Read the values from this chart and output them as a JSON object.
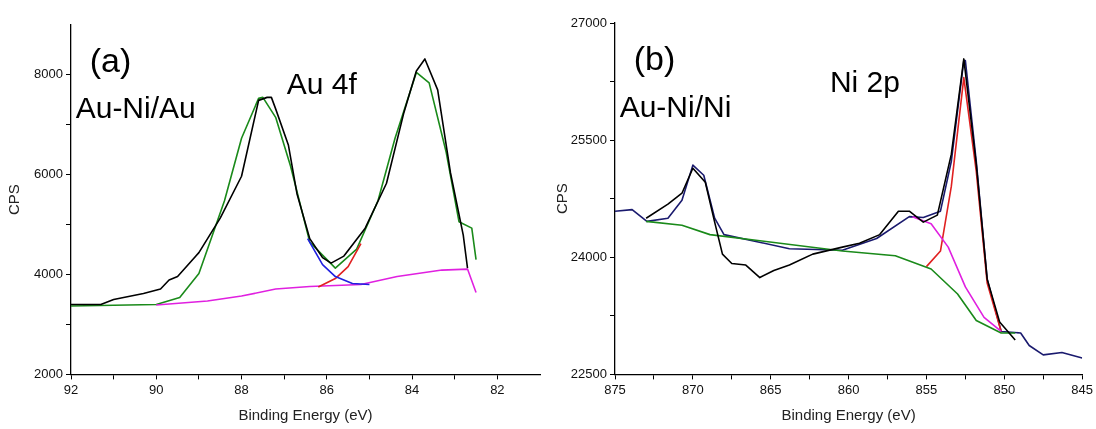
{
  "chart_data": [
    {
      "type": "line",
      "xlabel": "Binding Energy (eV)",
      "ylabel": "CPS",
      "annotations": [
        "(a)",
        "Au-Ni/Au",
        "Au 4f"
      ],
      "xlim": [
        92,
        81
      ],
      "ylim": [
        2000,
        9000
      ],
      "xticks": [
        92,
        {
          "value": 91,
          "label": null
        },
        90,
        {
          "value": 89,
          "label": null
        },
        88,
        {
          "value": 87,
          "label": null
        },
        86,
        {
          "value": 85,
          "label": null
        },
        84,
        {
          "value": 83,
          "label": null
        },
        82
      ],
      "yticks": [
        2000,
        {
          "value": 3000,
          "label": null
        },
        4000,
        {
          "value": 5000,
          "label": null
        },
        6000,
        {
          "value": 7000,
          "label": null
        },
        8000
      ],
      "series": [
        {
          "color": "#000000",
          "x": [
            92,
            91.3,
            91.0,
            90.3,
            89.9,
            89.7,
            89.5,
            89.0,
            88.5,
            88.0,
            87.6,
            87.4,
            87.3,
            87.2,
            86.9,
            86.7,
            86.4,
            86.1,
            85.9,
            85.6,
            85.1,
            84.6,
            84.2,
            83.9,
            83.7,
            83.4,
            83.1,
            82.8,
            82.7
          ],
          "values": [
            3400,
            3400,
            3500,
            3620,
            3710,
            3890,
            3960,
            4440,
            5130,
            5970,
            7490,
            7550,
            7550,
            7320,
            6590,
            5620,
            4720,
            4340,
            4230,
            4370,
            4930,
            5830,
            7220,
            8080,
            8320,
            7700,
            6040,
            4790,
            4130
          ]
        },
        {
          "color": "#2020e0",
          "x": [
            86.45,
            86.1,
            85.8,
            85.4,
            85.0
          ],
          "values": [
            4720,
            4200,
            3960,
            3820,
            3800
          ]
        },
        {
          "color": "#e02020",
          "x": [
            86.2,
            85.8,
            85.5,
            85.2
          ],
          "values": [
            3750,
            3920,
            4160,
            4620
          ]
        },
        {
          "color": "#e020e0",
          "x": [
            90.0,
            88.8,
            88.0,
            87.2,
            86.4,
            85.2,
            84.35,
            83.3,
            82.7,
            82.5
          ],
          "values": [
            3390,
            3470,
            3570,
            3710,
            3760,
            3800,
            3960,
            4090,
            4110,
            3640
          ]
        },
        {
          "color": "#1a8a1a",
          "x": [
            92,
            90.0,
            89.45,
            89.0,
            88.4,
            88.0,
            87.6,
            87.5,
            87.2,
            86.85,
            86.4,
            85.8,
            85.3,
            84.8,
            84.4,
            83.9,
            83.6,
            83.2,
            82.9,
            82.6,
            82.5
          ],
          "values": [
            3370,
            3400,
            3540,
            4020,
            5480,
            6730,
            7530,
            7550,
            7150,
            6170,
            4650,
            4130,
            4510,
            5480,
            6730,
            8050,
            7840,
            6450,
            5060,
            4930,
            4300
          ]
        }
      ]
    },
    {
      "type": "line",
      "xlabel": "Binding Energy (eV)",
      "ylabel": "CPS",
      "annotations": [
        "(b)",
        "Au-Ni/Ni",
        "Ni 2p"
      ],
      "xlim": [
        875,
        845
      ],
      "ylim": [
        22500,
        27000
      ],
      "xticks": [
        875,
        {
          "value": 872.5,
          "label": null
        },
        870,
        {
          "value": 867.5,
          "label": null
        },
        865,
        {
          "value": 862.5,
          "label": null
        },
        860,
        {
          "value": 857.5,
          "label": null
        },
        855,
        {
          "value": 852.5,
          "label": null
        },
        850,
        {
          "value": 847.5,
          "label": null
        },
        845
      ],
      "yticks": [
        22500,
        {
          "value": 23250,
          "label": null
        },
        24000,
        {
          "value": 24750,
          "label": null
        },
        25500,
        {
          "value": 26250,
          "label": null
        },
        27000
      ],
      "series": [
        {
          "color": "#000000",
          "x": [
            873.0,
            871.6,
            870.7,
            870.0,
            869.2,
            868.6,
            868.1,
            867.5,
            866.6,
            865.7,
            864.8,
            863.8,
            862.3,
            860.4,
            859.3,
            858.0,
            856.8,
            856.1,
            855.2,
            854.3,
            853.4,
            852.6,
            851.8,
            851.1,
            850.3,
            849.3
          ],
          "values": [
            24500,
            24680,
            24820,
            25140,
            24960,
            24450,
            24040,
            23920,
            23900,
            23740,
            23830,
            23900,
            24040,
            24130,
            24180,
            24290,
            24590,
            24590,
            24450,
            24540,
            25320,
            26540,
            25190,
            23720,
            23170,
            22940
          ]
        },
        {
          "color": "#1a8a1a",
          "x": [
            873.0,
            870.7,
            868.9,
            860.4,
            857.0,
            854.7,
            853.0,
            851.8,
            850.2,
            849.3
          ],
          "values": [
            24460,
            24410,
            24290,
            24080,
            24020,
            23850,
            23530,
            23190,
            23030,
            23030
          ]
        },
        {
          "color": "#e020e0",
          "x": [
            855.9,
            854.7,
            853.6,
            852.5,
            851.3,
            850.2
          ],
          "values": [
            24520,
            24430,
            24130,
            23620,
            23230,
            23050
          ]
        },
        {
          "color": "#e02020",
          "x": [
            855.0,
            854.1,
            853.4,
            852.6,
            851.8,
            851.1,
            850.2
          ],
          "values": [
            23880,
            24080,
            24910,
            26300,
            25100,
            23670,
            23050
          ]
        },
        {
          "color": "#1a1a6e",
          "x": [
            875,
            873.9,
            872.95,
            871.6,
            870.7,
            870.0,
            869.3,
            868.6,
            868.0,
            863.8,
            860.4,
            858.2,
            856.1,
            855.2,
            854.1,
            853.4,
            852.6,
            852.5,
            851.8,
            851.1,
            850.2,
            848.95,
            848.4,
            847.5,
            846.3,
            845
          ],
          "values": [
            24590,
            24610,
            24460,
            24500,
            24730,
            25180,
            25050,
            24500,
            24290,
            24110,
            24090,
            24240,
            24520,
            24510,
            24590,
            25230,
            26520,
            26520,
            25230,
            23720,
            23050,
            23030,
            22870,
            22750,
            22780,
            22710
          ]
        }
      ]
    }
  ]
}
